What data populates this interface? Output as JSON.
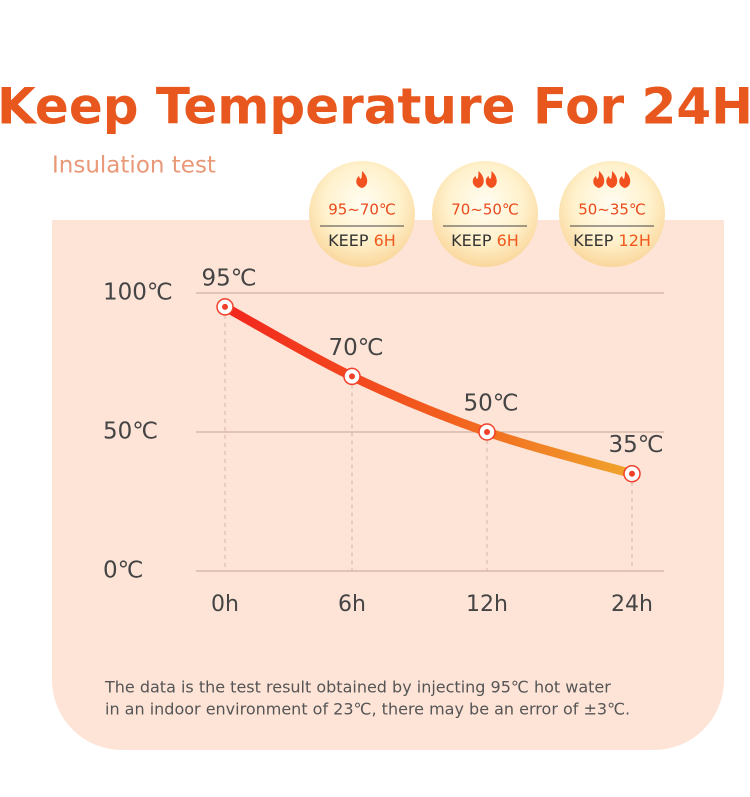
{
  "chart_data": {
    "type": "line",
    "title": "Keep Temperature For 24H",
    "subtitle": "Insulation test",
    "categories": [
      "0h",
      "6h",
      "12h",
      "24h"
    ],
    "series": [
      {
        "color": "#f03a22",
        "values": [
          95,
          70,
          50,
          35
        ],
        "value_labels": [
          "95℃",
          "70℃",
          "50℃",
          "35℃"
        ]
      }
    ],
    "ylim": [
      0,
      100
    ],
    "yticks": [
      {
        "value": 0,
        "label": "0℃"
      },
      {
        "value": 50,
        "label": "50℃"
      },
      {
        "value": 100,
        "label": "100℃"
      }
    ],
    "grid": true
  },
  "badges": [
    {
      "range": "95~70℃",
      "keep": "KEEP",
      "duration": "6H"
    },
    {
      "range": "70~50℃",
      "keep": "KEEP",
      "duration": "6H"
    },
    {
      "range": "50~35℃",
      "keep": "KEEP",
      "duration": "12H"
    }
  ],
  "note": [
    "The data is the test result obtained by injecting 95℃ hot water",
    "in an indoor environment of 23℃, there may be an error of ±3℃."
  ]
}
